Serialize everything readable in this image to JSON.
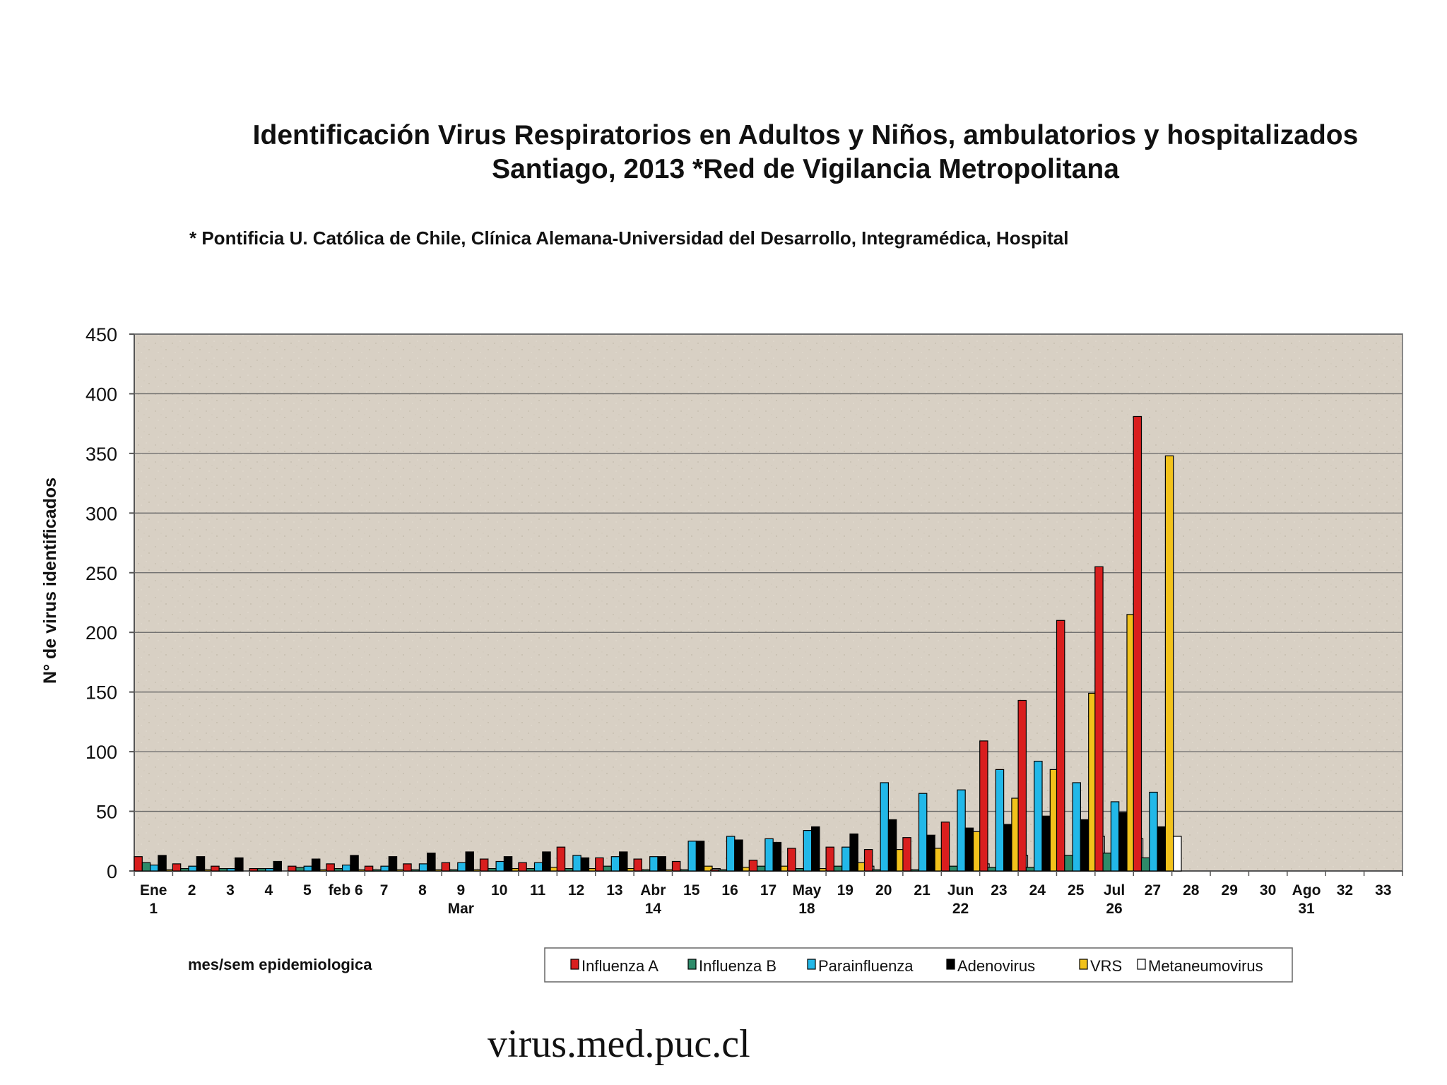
{
  "chart_data": {
    "type": "bar",
    "title_line1": "Identificación Virus Respiratorios en Adultos y Niños, ambulatorios y hospitalizados",
    "title_line2": "Santiago, 2013  *Red de Vigilancia Metropolitana",
    "subtitle": "* Pontificia U. Católica de Chile, Clínica Alemana-Universidad del Desarrollo, Integramédica, Hospital",
    "ylabel": "N° de virus identificados",
    "xlabel": "mes/sem  epidemiologica",
    "ylim": [
      0,
      450
    ],
    "yticks": [
      0,
      50,
      100,
      150,
      200,
      250,
      300,
      350,
      400,
      450
    ],
    "categories": [
      [
        "Ene",
        "1"
      ],
      [
        "2"
      ],
      [
        "3"
      ],
      [
        "4"
      ],
      [
        "5"
      ],
      [
        "feb 6"
      ],
      [
        "7"
      ],
      [
        "8"
      ],
      [
        "9",
        "Mar"
      ],
      [
        "10"
      ],
      [
        "11"
      ],
      [
        "12"
      ],
      [
        "13"
      ],
      [
        "Abr",
        "14"
      ],
      [
        "15"
      ],
      [
        "16"
      ],
      [
        "17"
      ],
      [
        "May",
        "18"
      ],
      [
        "19"
      ],
      [
        "20"
      ],
      [
        "21"
      ],
      [
        "Jun",
        "22"
      ],
      [
        "23"
      ],
      [
        "24"
      ],
      [
        "25"
      ],
      [
        "Jul",
        "26"
      ],
      [
        "27"
      ],
      [
        "28"
      ],
      [
        "29"
      ],
      [
        "30"
      ],
      [
        "Ago",
        "31"
      ],
      [
        "32"
      ],
      [
        "33"
      ]
    ],
    "series": [
      {
        "name": "Influenza A",
        "color": "#d91e1e",
        "values": [
          12,
          6,
          4,
          2,
          4,
          6,
          4,
          6,
          7,
          10,
          7,
          20,
          11,
          10,
          8,
          1,
          9,
          19,
          20,
          18,
          28,
          41,
          109,
          143,
          210,
          255,
          381,
          0,
          0,
          0,
          0,
          0,
          0
        ]
      },
      {
        "name": "Influenza B",
        "color": "#2e8b6a",
        "values": [
          7,
          2,
          2,
          2,
          3,
          2,
          1,
          1,
          1,
          2,
          2,
          2,
          4,
          1,
          1,
          1,
          4,
          2,
          4,
          1,
          1,
          4,
          3,
          3,
          13,
          15,
          11,
          0,
          0,
          0,
          0,
          0,
          0
        ]
      },
      {
        "name": "Parainfluenza",
        "color": "#22b8e8",
        "values": [
          5,
          4,
          2,
          2,
          4,
          5,
          4,
          6,
          7,
          8,
          7,
          13,
          12,
          12,
          25,
          29,
          27,
          34,
          20,
          74,
          65,
          68,
          85,
          92,
          74,
          58,
          66,
          0,
          0,
          0,
          0,
          0,
          0
        ]
      },
      {
        "name": "Adenovirus",
        "color": "#000000",
        "values": [
          13,
          12,
          11,
          8,
          10,
          13,
          12,
          15,
          16,
          12,
          16,
          11,
          16,
          12,
          25,
          26,
          24,
          37,
          31,
          43,
          30,
          36,
          39,
          46,
          43,
          49,
          37,
          0,
          0,
          0,
          0,
          0,
          0
        ]
      },
      {
        "name": "VRS",
        "color": "#f2c21b",
        "values": [
          1,
          1,
          0,
          0,
          1,
          1,
          1,
          1,
          1,
          2,
          3,
          2,
          2,
          1,
          4,
          3,
          4,
          2,
          7,
          18,
          19,
          33,
          61,
          85,
          149,
          215,
          348,
          0,
          0,
          0,
          0,
          0,
          0
        ]
      },
      {
        "name": "Metaneumovirus",
        "color": "#ffffff",
        "values": [
          1,
          2,
          1,
          0,
          2,
          1,
          1,
          1,
          1,
          2,
          2,
          2,
          1,
          1,
          2,
          1,
          1,
          1,
          4,
          1,
          3,
          6,
          13,
          13,
          29,
          27,
          29,
          0,
          0,
          0,
          0,
          0,
          0
        ]
      }
    ]
  },
  "footer": {
    "url": "virus.med.puc.cl"
  }
}
